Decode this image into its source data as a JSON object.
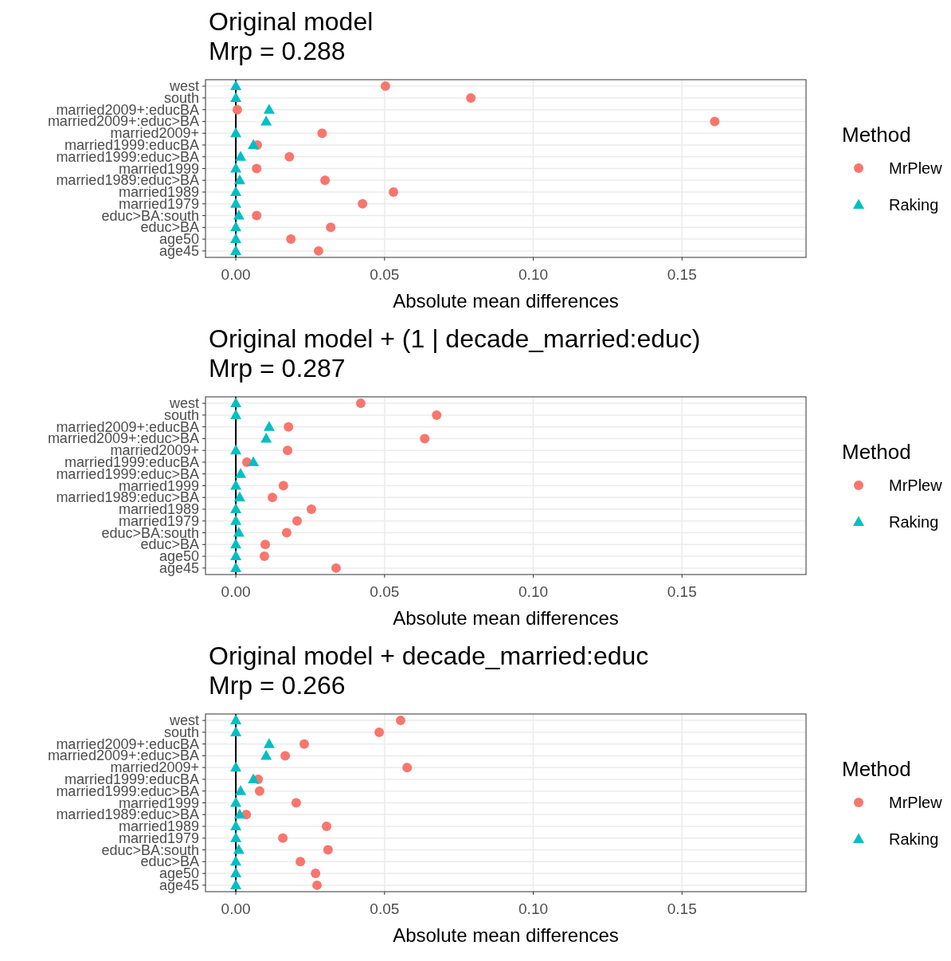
{
  "chart_data": [
    {
      "type": "scatter",
      "orientation": "horizontal",
      "title": "Original model",
      "subtitle": "Mrp = 0.288",
      "xlabel": "Absolute mean differences",
      "legend_title": "Method",
      "legend": "right",
      "grid": true,
      "categories": [
        "west",
        "south",
        "married2009+:educBA",
        "married2009+:educ>BA",
        "married2009+",
        "married1999:educBA",
        "married1999:educ>BA",
        "married1999",
        "married1989:educ>BA",
        "married1989",
        "married1979",
        "educ>BA:south",
        "educ>BA",
        "age50",
        "age45"
      ],
      "series": [
        {
          "name": "MrPlew",
          "color": "#f8766d",
          "marker": "circle",
          "values": [
            0.0503,
            0.079,
            0.0005,
            0.161,
            0.029,
            0.0072,
            0.018,
            0.007,
            0.03,
            0.053,
            0.0426,
            0.007,
            0.0319,
            0.0185,
            0.0278
          ]
        },
        {
          "name": "Raking",
          "color": "#00bfc4",
          "marker": "triangle",
          "values": [
            0,
            0,
            0.0112,
            0.0102,
            0,
            0.0059,
            0.0016,
            0,
            0.0013,
            0,
            0,
            0.001,
            0,
            0,
            0
          ]
        }
      ],
      "xlim": [
        -0.0102,
        0.1917
      ],
      "xticks": [
        {
          "value": 0,
          "label": "0.00"
        },
        {
          "value": 0.05,
          "label": "0.05"
        },
        {
          "value": 0.1,
          "label": "0.10"
        },
        {
          "value": 0.15,
          "label": "0.15"
        }
      ],
      "ref_lines": [
        {
          "axis": "x",
          "value": 0,
          "color": "#000000"
        }
      ]
    },
    {
      "type": "scatter",
      "orientation": "horizontal",
      "title": "Original model + (1 | decade_married:educ)",
      "subtitle": "Mrp = 0.287",
      "xlabel": "Absolute mean differences",
      "legend_title": "Method",
      "legend": "right",
      "grid": true,
      "categories": [
        "west",
        "south",
        "married2009+:educBA",
        "married2009+:educ>BA",
        "married2009+",
        "married1999:educBA",
        "married1999:educ>BA",
        "married1999",
        "married1989:educ>BA",
        "married1989",
        "married1979",
        "educ>BA:south",
        "educ>BA",
        "age50",
        "age45"
      ],
      "series": [
        {
          "name": "MrPlew",
          "color": "#f8766d",
          "marker": "circle",
          "values": [
            0.042,
            0.0675,
            0.0177,
            0.0635,
            0.0174,
            0.0037,
            null,
            0.016,
            0.0123,
            0.0254,
            0.0206,
            0.0171,
            0.0099,
            0.0096,
            0.0337
          ]
        },
        {
          "name": "Raking",
          "color": "#00bfc4",
          "marker": "triangle",
          "values": [
            0,
            0,
            0.0112,
            0.0102,
            0,
            0.0059,
            0.0016,
            0,
            0.0013,
            0,
            0,
            0.001,
            0,
            0,
            0
          ]
        }
      ],
      "xlim": [
        -0.0102,
        0.1917
      ],
      "xticks": [
        {
          "value": 0,
          "label": "0.00"
        },
        {
          "value": 0.05,
          "label": "0.05"
        },
        {
          "value": 0.1,
          "label": "0.10"
        },
        {
          "value": 0.15,
          "label": "0.15"
        }
      ],
      "ref_lines": [
        {
          "axis": "x",
          "value": 0,
          "color": "#000000"
        }
      ]
    },
    {
      "type": "scatter",
      "orientation": "horizontal",
      "title": "Original model + decade_married:educ",
      "subtitle": "Mrp = 0.266",
      "xlabel": "Absolute mean differences",
      "legend_title": "Method",
      "legend": "right",
      "grid": true,
      "categories": [
        "west",
        "south",
        "married2009+:educBA",
        "married2009+:educ>BA",
        "married2009+",
        "married1999:educBA",
        "married1999:educ>BA",
        "married1999",
        "married1989:educ>BA",
        "married1989",
        "married1979",
        "educ>BA:south",
        "educ>BA",
        "age50",
        "age45"
      ],
      "series": [
        {
          "name": "MrPlew",
          "color": "#f8766d",
          "marker": "circle",
          "values": [
            0.0554,
            0.0482,
            0.023,
            0.0166,
            0.0576,
            0.0075,
            0.008,
            0.0203,
            0.0035,
            0.0305,
            0.0158,
            0.031,
            0.0217,
            0.0268,
            0.0273
          ]
        },
        {
          "name": "Raking",
          "color": "#00bfc4",
          "marker": "triangle",
          "values": [
            0,
            0,
            0.0112,
            0.0102,
            0,
            0.0059,
            0.0016,
            0,
            0.0013,
            0,
            0,
            0.001,
            0,
            0,
            0
          ]
        }
      ],
      "xlim": [
        -0.0102,
        0.1917
      ],
      "xticks": [
        {
          "value": 0,
          "label": "0.00"
        },
        {
          "value": 0.05,
          "label": "0.05"
        },
        {
          "value": 0.1,
          "label": "0.10"
        },
        {
          "value": 0.15,
          "label": "0.15"
        }
      ],
      "ref_lines": [
        {
          "axis": "x",
          "value": 0,
          "color": "#000000"
        }
      ]
    }
  ]
}
